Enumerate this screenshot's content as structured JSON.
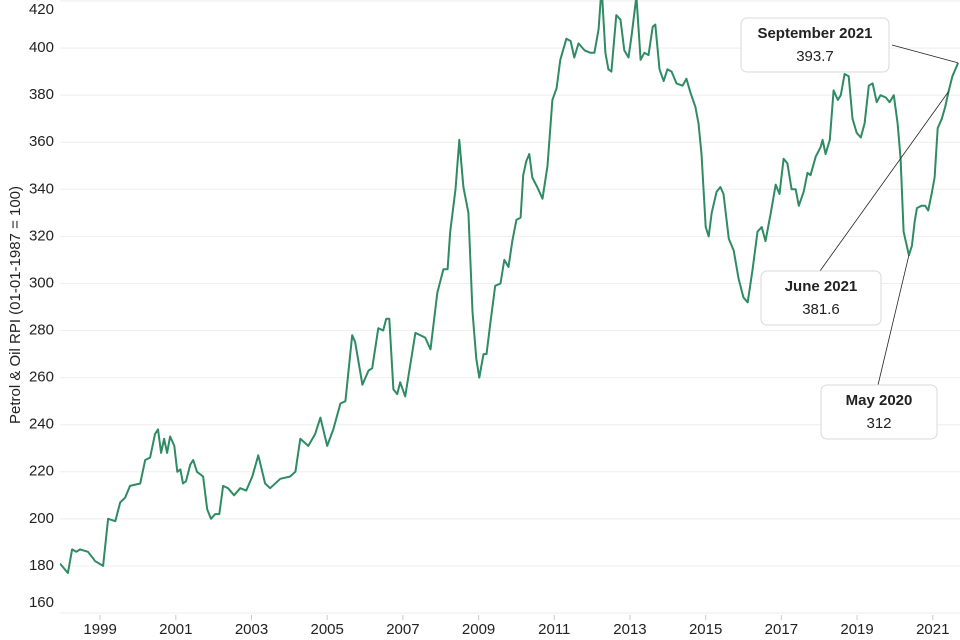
{
  "chart_data": {
    "type": "line",
    "y_label": "Petrol & Oil RPI (01-01-1987 = 100)",
    "xlim": [
      1997.94,
      2021.72
    ],
    "xticks": [
      1999,
      2001,
      2003,
      2005,
      2007,
      2009,
      2011,
      2013,
      2015,
      2017,
      2019,
      2021
    ],
    "ylim": [
      160,
      420
    ],
    "yticks": [
      160,
      180,
      200,
      220,
      240,
      260,
      280,
      300,
      320,
      340,
      360,
      380,
      400,
      420
    ],
    "grid": true,
    "series": [
      {
        "color": "#2e8b63",
        "x": [
          1997.94,
          1998.15,
          1998.26,
          1998.37,
          1998.47,
          1998.68,
          1998.87,
          1999.08,
          1999.21,
          1999.4,
          1999.53,
          1999.66,
          1999.79,
          2000.06,
          2000.19,
          2000.32,
          2000.45,
          2000.53,
          2000.61,
          2000.69,
          2000.77,
          2000.85,
          2000.96,
          2001.04,
          2001.12,
          2001.19,
          2001.27,
          2001.38,
          2001.46,
          2001.56,
          2001.72,
          2001.83,
          2001.93,
          2002.04,
          2002.15,
          2002.25,
          2002.38,
          2002.54,
          2002.7,
          2002.86,
          2003.02,
          2003.18,
          2003.36,
          2003.49,
          2003.76,
          2004.02,
          2004.16,
          2004.29,
          2004.5,
          2004.68,
          2004.82,
          2005.0,
          2005.16,
          2005.35,
          2005.48,
          2005.66,
          2005.74,
          2005.93,
          2006.09,
          2006.19,
          2006.35,
          2006.48,
          2006.56,
          2006.64,
          2006.75,
          2006.85,
          2006.93,
          2007.06,
          2007.33,
          2007.59,
          2007.73,
          2007.91,
          2008.07,
          2008.18,
          2008.25,
          2008.39,
          2008.49,
          2008.6,
          2008.73,
          2008.84,
          2008.94,
          2009.02,
          2009.13,
          2009.21,
          2009.31,
          2009.44,
          2009.58,
          2009.68,
          2009.79,
          2009.89,
          2010.0,
          2010.11,
          2010.18,
          2010.26,
          2010.34,
          2010.42,
          2010.55,
          2010.69,
          2010.82,
          2010.95,
          2011.06,
          2011.16,
          2011.32,
          2011.43,
          2011.53,
          2011.64,
          2011.8,
          2011.96,
          2012.06,
          2012.17,
          2012.25,
          2012.35,
          2012.43,
          2012.51,
          2012.64,
          2012.75,
          2012.85,
          2012.96,
          2013.04,
          2013.17,
          2013.28,
          2013.38,
          2013.49,
          2013.6,
          2013.67,
          2013.78,
          2013.89,
          2013.99,
          2014.1,
          2014.23,
          2014.39,
          2014.49,
          2014.6,
          2014.73,
          2014.81,
          2014.89,
          2015.0,
          2015.08,
          2015.16,
          2015.29,
          2015.39,
          2015.47,
          2015.61,
          2015.74,
          2015.87,
          2016.0,
          2016.11,
          2016.24,
          2016.37,
          2016.48,
          2016.58,
          2016.72,
          2016.85,
          2016.95,
          2017.06,
          2017.16,
          2017.27,
          2017.38,
          2017.46,
          2017.59,
          2017.69,
          2017.77,
          2017.91,
          2018.04,
          2018.09,
          2018.17,
          2018.28,
          2018.38,
          2018.49,
          2018.57,
          2018.67,
          2018.78,
          2018.88,
          2018.99,
          2019.1,
          2019.2,
          2019.31,
          2019.41,
          2019.52,
          2019.62,
          2019.76,
          2019.86,
          2019.97,
          2020.07,
          2020.15,
          2020.23,
          2020.37,
          2020.45,
          2020.52,
          2020.58,
          2020.7,
          2020.8,
          2020.88,
          2020.97,
          2021.05,
          2021.13,
          2021.24,
          2021.33,
          2021.42,
          2021.52,
          2021.67
        ],
        "values": [
          181,
          177,
          187,
          186,
          187,
          186,
          182,
          180,
          200,
          199,
          207,
          209,
          214,
          215,
          225,
          226,
          236,
          238,
          228,
          234,
          228,
          235,
          231,
          220,
          221,
          215,
          216,
          223,
          225,
          220,
          218,
          204,
          200,
          202,
          202,
          214,
          213,
          210,
          213,
          212,
          218,
          227,
          215,
          213,
          217,
          218,
          220,
          234,
          231,
          236,
          243,
          231,
          238,
          249,
          250,
          278,
          275,
          257,
          263,
          264,
          281,
          280,
          285,
          285,
          255,
          253,
          258,
          252,
          279,
          277,
          272,
          296,
          306,
          306,
          322,
          340,
          361,
          341,
          330,
          288,
          268,
          260,
          270,
          270,
          283,
          299,
          300,
          310,
          307,
          318,
          327,
          328,
          346,
          352,
          355,
          345,
          341,
          336,
          350,
          378,
          383,
          395,
          404,
          403,
          396,
          402,
          399,
          398,
          398,
          408,
          426,
          398,
          391,
          390,
          414,
          412,
          399,
          396,
          405,
          422,
          395,
          398,
          397,
          409,
          410,
          391,
          386,
          391,
          390,
          385,
          384,
          387,
          381,
          375,
          368,
          355,
          324,
          320,
          330,
          339,
          341,
          338,
          319,
          314,
          302,
          294,
          292,
          306,
          322,
          324,
          318,
          330,
          342,
          338,
          353,
          351,
          340,
          340,
          333,
          339,
          347,
          346,
          354,
          358,
          361,
          355,
          361,
          382,
          378,
          380,
          389,
          388,
          370,
          364,
          362,
          368,
          384,
          385,
          377,
          380,
          379,
          377,
          380,
          368,
          353,
          322,
          312.0,
          316,
          326,
          332,
          333,
          333,
          331,
          338,
          345,
          366,
          370,
          375,
          381.6,
          388,
          393.7
        ]
      }
    ],
    "annotations": [
      {
        "label": "September 2021",
        "x": 2021.67,
        "value": 393.7
      },
      {
        "label": "June 2021",
        "x": 2021.42,
        "value": 381.6
      },
      {
        "label": "May 2020",
        "x": 2020.37,
        "value": 312.0
      }
    ]
  }
}
